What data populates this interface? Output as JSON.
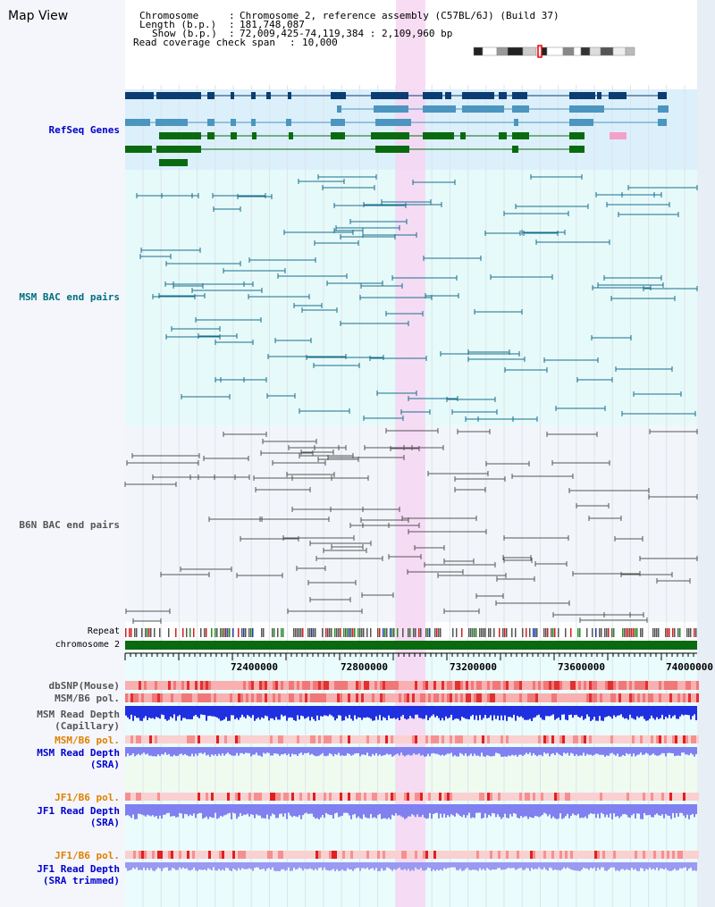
{
  "title": "Map View",
  "header": {
    "chromosome_label": "Chromosome",
    "chromosome_value": "Chromosome 2, reference assembly (C57BL/6J) (Build 37)",
    "length_label": "Length (b.p.)",
    "length_value": "181,748,087",
    "show_label": "Show (b.p.)",
    "show_value": "72,009,425-74,119,384 : 2,109,960 bp",
    "coverage_label": "Read coverage check span",
    "coverage_value": "10,000"
  },
  "tracks": {
    "refseq": "RefSeq Genes",
    "msm_bac": "MSM BAC end pairs",
    "b6n_bac": "B6N BAC end pairs",
    "repeat": "Repeat",
    "chromosome": "chromosome 2",
    "dbsnp": "dbSNP(Mouse)",
    "msm_b6_pol_1": "MSM/B6 pol.",
    "msm_depth_cap_1": "MSM Read Depth",
    "msm_depth_cap_2": "(Capillary)",
    "msm_b6_pol_2": "MSM/B6 pol.",
    "msm_depth_sra_1": "MSM Read Depth",
    "msm_depth_sra_2": "(SRA)",
    "jf1_b6_pol_1": "JF1/B6 pol.",
    "jf1_depth_sra_1": "JF1 Read Depth",
    "jf1_depth_sra_2": "(SRA)",
    "jf1_b6_pol_2": "JF1/B6 pol.",
    "jf1_depth_trim_1": "JF1 Read Depth",
    "jf1_depth_trim_2": "(SRA trimmed)"
  },
  "axis": {
    "ticks": [
      "72400000",
      "72800000",
      "73200000",
      "73600000",
      "74000000"
    ]
  },
  "colors": {
    "refseq_bg": "#dcf0fb",
    "msm_bac_bg": "#e6fafa",
    "b6n_bac_bg": "#f2f6fa",
    "highlight": "#f7d6f2",
    "gene_dark": "#0b3d72",
    "gene_mid": "#4b95bf",
    "gene_green": "#0a6a10",
    "msm_pair": "#1a6f8c",
    "b6n_pair": "#555555",
    "chromosome_bar": "#0a6a10",
    "depth_blue": "#2030e0",
    "depth_sra": "#8080f0",
    "label_blue": "#0000cc",
    "label_orange": "#e08000",
    "label_teal": "#007080"
  }
}
